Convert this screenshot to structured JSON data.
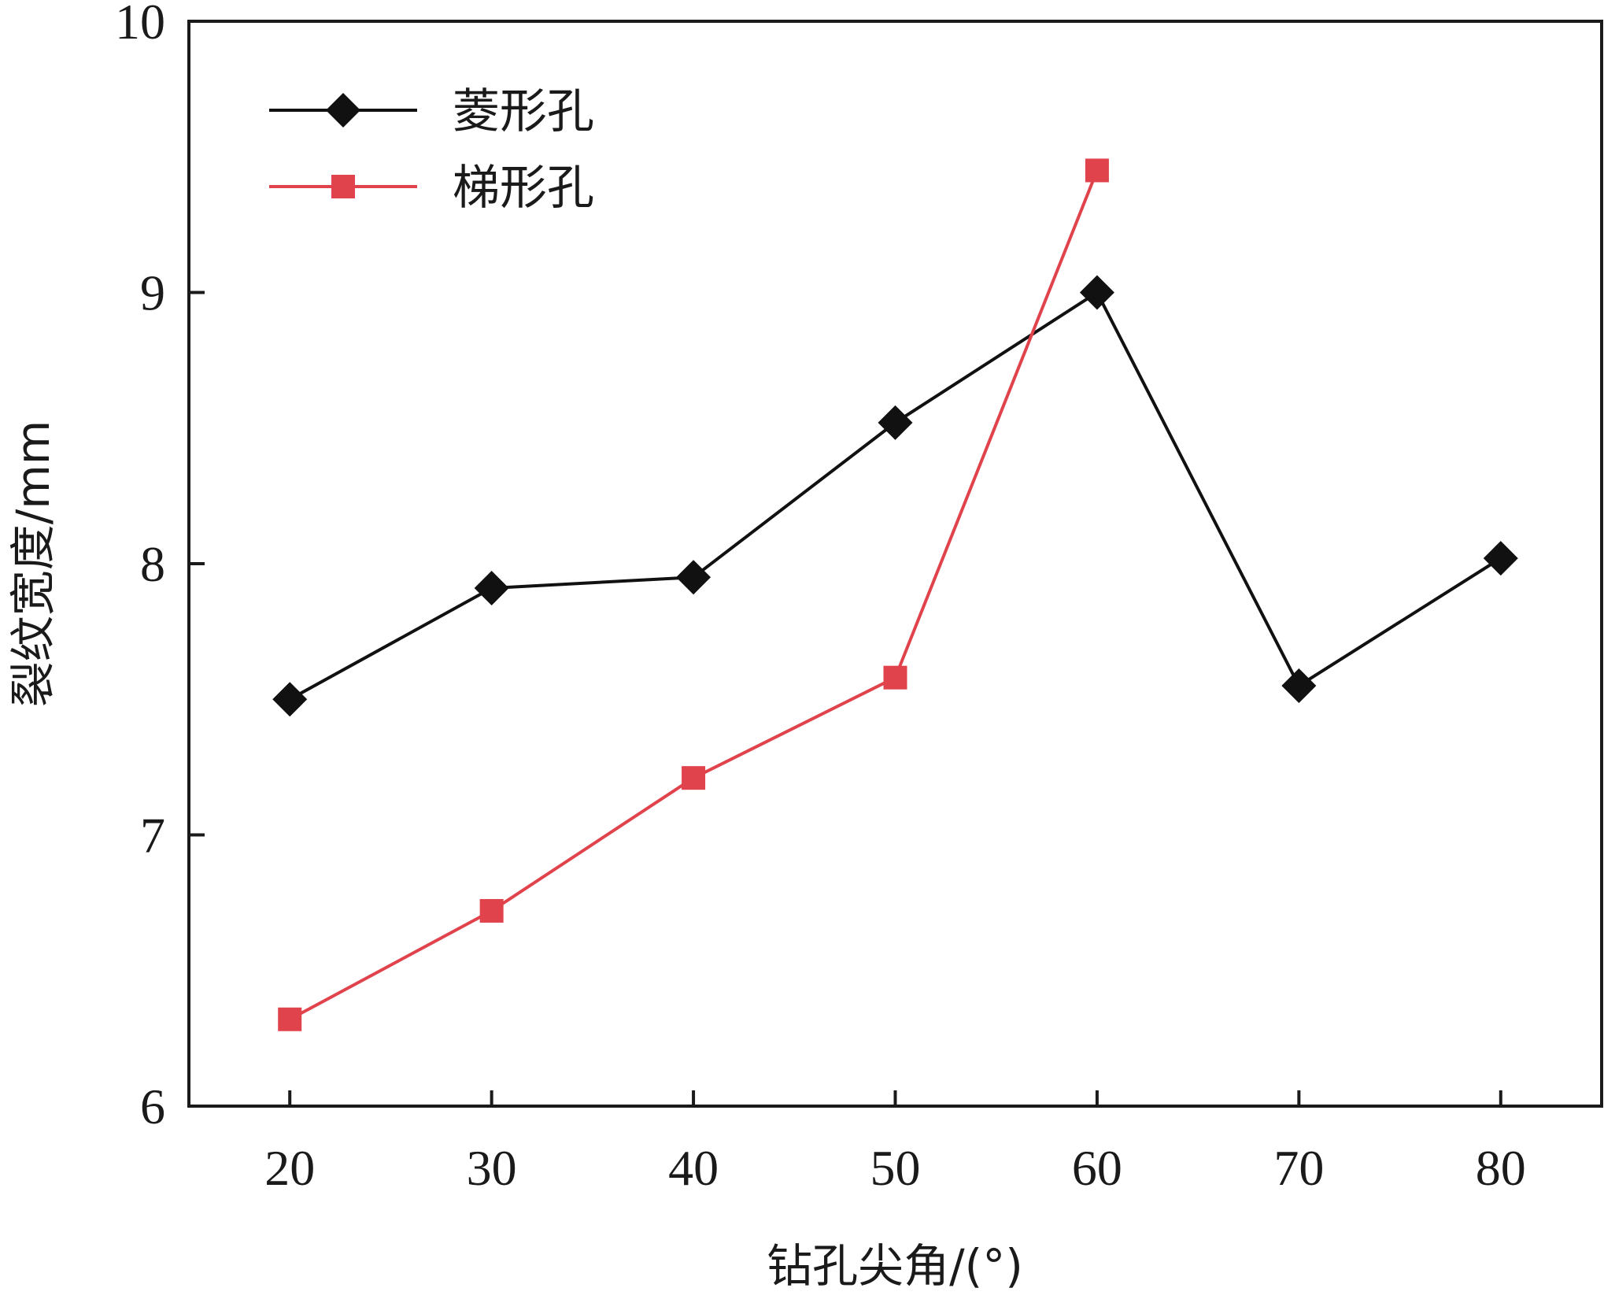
{
  "chart_data": {
    "type": "line",
    "title": "",
    "xlabel": "钻孔尖角/(°)",
    "ylabel": "裂纹宽度/mm",
    "xlim": [
      15,
      85
    ],
    "ylim": [
      6,
      10
    ],
    "xticks": [
      20,
      30,
      40,
      50,
      60,
      70,
      80
    ],
    "yticks": [
      6,
      7,
      8,
      9,
      10
    ],
    "grid": false,
    "legend_position": "top-left",
    "series": [
      {
        "name": "菱形孔",
        "color": "#111111",
        "marker": "diamond",
        "x": [
          20,
          30,
          40,
          50,
          60,
          70,
          80
        ],
        "values": [
          7.5,
          7.91,
          7.95,
          8.52,
          9.0,
          7.55,
          8.02
        ]
      },
      {
        "name": "梯形孔",
        "color": "#e0434b",
        "marker": "square",
        "x": [
          20,
          30,
          40,
          50,
          60
        ],
        "values": [
          6.32,
          6.72,
          7.21,
          7.58,
          9.45
        ]
      }
    ]
  }
}
